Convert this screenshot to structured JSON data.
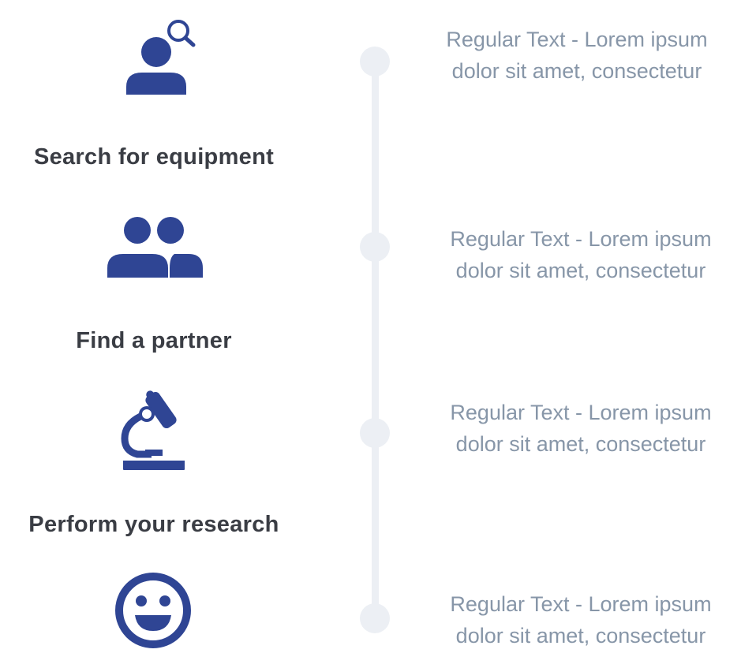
{
  "colors": {
    "icon": "#2f4594",
    "timeline": "#eceff4",
    "title": "#3a3d44",
    "text": "#8796a8"
  },
  "steps": [
    {
      "title": "Search for equipment",
      "icon": "user-search-icon",
      "desc_line1": "Regular Text - Lorem ipsum",
      "desc_line2": "dolor sit amet, consectetur"
    },
    {
      "title": "Find a partner",
      "icon": "users-icon",
      "desc_line1": "Regular Text - Lorem ipsum",
      "desc_line2": "dolor sit amet, consectetur"
    },
    {
      "title": "Perform your research",
      "icon": "microscope-icon",
      "desc_line1": "Regular Text - Lorem ipsum",
      "desc_line2": "dolor sit amet, consectetur"
    },
    {
      "title": "",
      "icon": "smiley-icon",
      "desc_line1": "Regular Text - Lorem ipsum",
      "desc_line2": "dolor sit amet, consectetur"
    }
  ]
}
